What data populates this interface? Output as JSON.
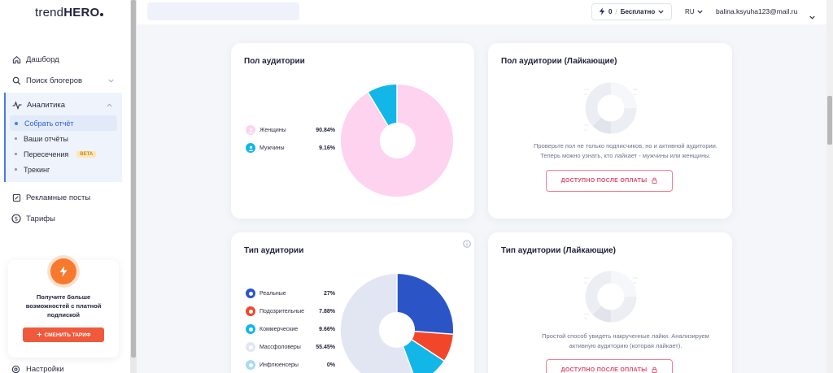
{
  "app": {
    "logo_light": "trend",
    "logo_bold": "HERO"
  },
  "sidebar": {
    "items": [
      {
        "label": "Дашборд"
      },
      {
        "label": "Поиск блогеров"
      },
      {
        "label": "Аналитика"
      },
      {
        "label": "Рекламные посты"
      },
      {
        "label": "Тарифы"
      }
    ],
    "analytics_sub": [
      {
        "label": "Собрать отчёт"
      },
      {
        "label": "Ваши отчёты"
      },
      {
        "label": "Пересечения",
        "badge": "BETA"
      },
      {
        "label": "Трекинг"
      }
    ],
    "settings_label": "Настройки"
  },
  "promo": {
    "text": "Получите больше возможностей с платной подпиской",
    "button": "СМЕНИТЬ ТАРИФ"
  },
  "header": {
    "search_placeholder": "",
    "plan_count": "0",
    "plan_name": "Бесплатно",
    "plan_sep": "/",
    "lang": "RU",
    "email": "balina.ksyuha123@mail.ru"
  },
  "gender_card": {
    "title": "Пол аудитории",
    "legend": [
      {
        "label": "Женщины",
        "value": "90.84%"
      },
      {
        "label": "Мужчины",
        "value": "9.16%"
      }
    ]
  },
  "gender_likers_card": {
    "title": "Пол аудитории (Лайкающие)",
    "text_line1": "Проверьте пол не только подписчиков, но и активной аудитории.",
    "text_line2": "Теперь можно узнать, кто лайкает - мужчины или женщины.",
    "button": "ДОСТУПНО ПОСЛЕ ОПЛАТЫ"
  },
  "type_card": {
    "title": "Тип аудитории",
    "legend": [
      {
        "label": "Реальные",
        "value": "27%"
      },
      {
        "label": "Подозрительные",
        "value": "7.88%"
      },
      {
        "label": "Коммерческие",
        "value": "9.66%"
      },
      {
        "label": "Массфоловеры",
        "value": "55.45%"
      },
      {
        "label": "Инфлюенсеры",
        "value": "0%"
      }
    ]
  },
  "type_likers_card": {
    "title": "Тип аудитории (Лайкающие)",
    "text_line1": "Простой способ увидеть накрученные лайки. Анализируем",
    "text_line2": "активную аудиторию (которая лайкает).",
    "button": "ДОСТУПНО ПОСЛЕ ОПЛАТЫ"
  },
  "colors": {
    "female": "#fdd3f0",
    "male": "#12b7e8",
    "real": "#2b55c7",
    "suspicious": "#f2462a",
    "commercial": "#12b7e8",
    "massfollowers": "#e2e6f2",
    "influencers": "#a8dcf0",
    "accent": "#f7792d"
  }
}
